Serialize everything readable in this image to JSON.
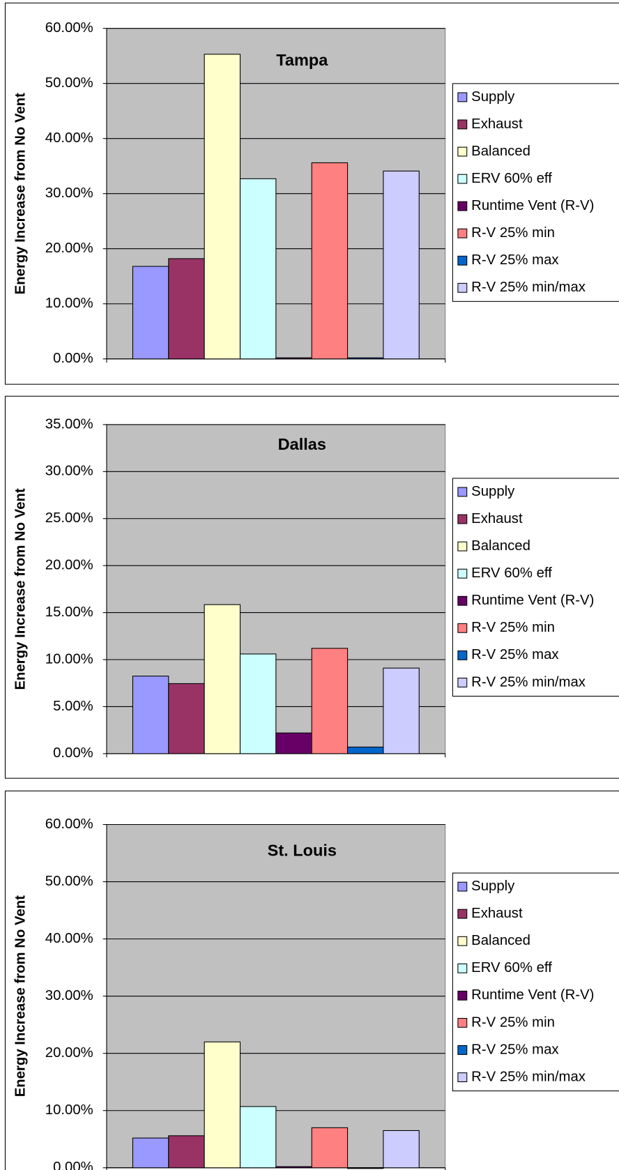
{
  "chart_data": [
    {
      "type": "bar",
      "title": "Tampa",
      "ylabel": "Energy Increase from No Vent",
      "categories": [
        null
      ],
      "ylim": [
        0,
        60
      ],
      "yticks": [
        {
          "value": 0,
          "label": "0.00%"
        },
        {
          "value": 10,
          "label": "10.00%"
        },
        {
          "value": 20,
          "label": "20.00%"
        },
        {
          "value": 30,
          "label": "30.00%"
        },
        {
          "value": 40,
          "label": "40.00%"
        },
        {
          "value": 50,
          "label": "50.00%"
        },
        {
          "value": 60,
          "label": "60.00%"
        }
      ],
      "grid": true,
      "legend": "right",
      "series": [
        {
          "name": "Supply",
          "color": "#9999ff",
          "values": [
            16.8
          ]
        },
        {
          "name": "Exhaust",
          "color": "#993366",
          "values": [
            18.2
          ]
        },
        {
          "name": "Balanced",
          "color": "#ffffcc",
          "values": [
            55.3
          ]
        },
        {
          "name": "ERV 60% eff",
          "color": "#ccffff",
          "values": [
            32.7
          ]
        },
        {
          "name": "Runtime Vent (R-V)",
          "color": "#660066",
          "values": [
            0.2
          ]
        },
        {
          "name": "R-V 25% min",
          "color": "#ff8080",
          "values": [
            35.6
          ]
        },
        {
          "name": "R-V 25% max",
          "color": "#0066cc",
          "values": [
            0.2
          ]
        },
        {
          "name": "R-V 25% min/max",
          "color": "#ccccff",
          "values": [
            34.1
          ]
        }
      ]
    },
    {
      "type": "bar",
      "title": "Dallas",
      "ylabel": "Energy Increase from No Vent",
      "categories": [
        null
      ],
      "ylim": [
        0,
        35
      ],
      "yticks": [
        {
          "value": 0,
          "label": "0.00%"
        },
        {
          "value": 5,
          "label": "5.00%"
        },
        {
          "value": 10,
          "label": "10.00%"
        },
        {
          "value": 15,
          "label": "15.00%"
        },
        {
          "value": 20,
          "label": "20.00%"
        },
        {
          "value": 25,
          "label": "25.00%"
        },
        {
          "value": 30,
          "label": "30.00%"
        },
        {
          "value": 35,
          "label": "35.00%"
        }
      ],
      "grid": true,
      "legend": "right",
      "series": [
        {
          "name": "Supply",
          "color": "#9999ff",
          "values": [
            8.25
          ]
        },
        {
          "name": "Exhaust",
          "color": "#993366",
          "values": [
            7.45
          ]
        },
        {
          "name": "Balanced",
          "color": "#ffffcc",
          "values": [
            15.85
          ]
        },
        {
          "name": "ERV 60% eff",
          "color": "#ccffff",
          "values": [
            10.6
          ]
        },
        {
          "name": "Runtime Vent (R-V)",
          "color": "#660066",
          "values": [
            2.2
          ]
        },
        {
          "name": "R-V 25% min",
          "color": "#ff8080",
          "values": [
            11.2
          ]
        },
        {
          "name": "R-V 25% max",
          "color": "#0066cc",
          "values": [
            0.7
          ]
        },
        {
          "name": "R-V 25% min/max",
          "color": "#ccccff",
          "values": [
            9.1
          ]
        }
      ]
    },
    {
      "type": "bar",
      "title": "St. Louis",
      "ylabel": "Energy Increase from No Vent",
      "categories": [
        null
      ],
      "ylim": [
        0,
        60
      ],
      "yticks": [
        {
          "value": 0,
          "label": "0.00%"
        },
        {
          "value": 10,
          "label": "10.00%"
        },
        {
          "value": 20,
          "label": "20.00%"
        },
        {
          "value": 30,
          "label": "30.00%"
        },
        {
          "value": 40,
          "label": "40.00%"
        },
        {
          "value": 50,
          "label": "50.00%"
        },
        {
          "value": 60,
          "label": "60.00%"
        }
      ],
      "grid": true,
      "legend": "right",
      "series": [
        {
          "name": "Supply",
          "color": "#9999ff",
          "values": [
            5.2
          ]
        },
        {
          "name": "Exhaust",
          "color": "#993366",
          "values": [
            5.6
          ]
        },
        {
          "name": "Balanced",
          "color": "#ffffcc",
          "values": [
            22.0
          ]
        },
        {
          "name": "ERV 60% eff",
          "color": "#ccffff",
          "values": [
            10.7
          ]
        },
        {
          "name": "Runtime Vent (R-V)",
          "color": "#660066",
          "values": [
            0.2
          ]
        },
        {
          "name": "R-V 25% min",
          "color": "#ff8080",
          "values": [
            7.0
          ]
        },
        {
          "name": "R-V 25% max",
          "color": "#0066cc",
          "values": [
            0.0
          ]
        },
        {
          "name": "R-V 25% min/max",
          "color": "#ccccff",
          "values": [
            6.5
          ]
        }
      ]
    }
  ]
}
